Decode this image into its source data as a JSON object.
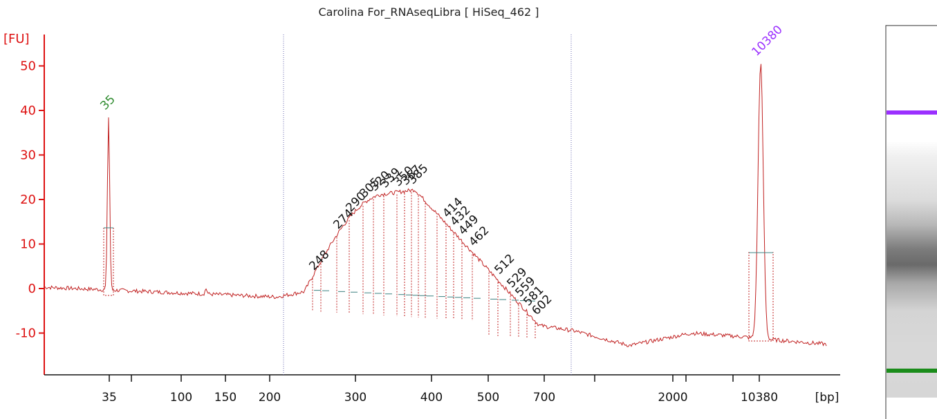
{
  "title": "Carolina  For_RNAseqLibra  [ HiSeq_462 ]",
  "chart_data": {
    "type": "line",
    "title": "Carolina  For_RNAseqLibra  [ HiSeq_462 ]",
    "ylabel": "[FU]",
    "xlabel": "[bp]",
    "ylim": [
      -19.5,
      56
    ],
    "yticks": [
      -10,
      0,
      10,
      20,
      30,
      40,
      50
    ],
    "x_axis_scale": "nonlinear (electrophoresis size ladder)",
    "xticks": [
      {
        "label": "35"
      },
      {
        "label": ""
      },
      {
        "label": "100"
      },
      {
        "label": "150"
      },
      {
        "label": "200"
      },
      {
        "label": "300"
      },
      {
        "label": "400"
      },
      {
        "label": "500"
      },
      {
        "label": "700"
      },
      {
        "label": ""
      },
      {
        "label": "2000"
      },
      {
        "label": ""
      },
      {
        "label": ""
      },
      {
        "label": "10380"
      }
    ],
    "peaks": [
      {
        "label": "35",
        "color": "#2e8b2e",
        "height_fu": 39
      },
      {
        "label": "10380",
        "color": "#9b30ff",
        "height_fu": 50.5
      }
    ],
    "smear_labels": [
      "248",
      "274",
      "290",
      "305",
      "320",
      "339",
      "350",
      "367",
      "385",
      "414",
      "432",
      "449",
      "462",
      "512",
      "529",
      "559",
      "581",
      "602"
    ],
    "region_markers_bp": [
      "~215",
      "~750"
    ],
    "gel_lane": {
      "upper_marker_color": "#9b30ff",
      "lower_marker_color": "#1a8c1a"
    },
    "grid": false,
    "legend": "none"
  }
}
